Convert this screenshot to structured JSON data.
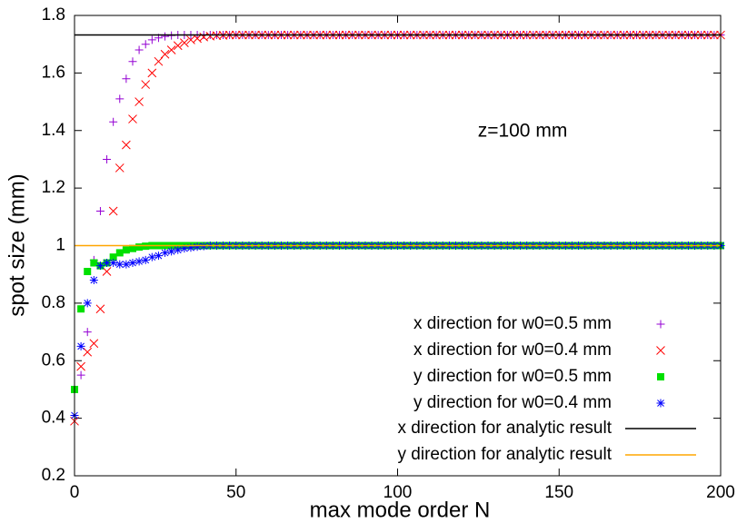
{
  "chart_data": {
    "type": "scatter",
    "xlabel": "max mode order N",
    "ylabel": "spot size (mm)",
    "annotation": "z=100 mm",
    "xlim": [
      0,
      200
    ],
    "xticks": [
      0,
      50,
      100,
      150,
      200
    ],
    "ylim": [
      0.2,
      1.8
    ],
    "yticks": [
      0.2,
      0.4,
      0.6,
      0.8,
      1,
      1.2,
      1.4,
      1.6,
      1.8
    ],
    "legend": "lower right",
    "x": [
      0,
      2,
      4,
      6,
      8,
      10,
      12,
      14,
      16,
      18,
      20,
      22,
      24,
      26,
      28,
      30,
      32,
      34,
      36,
      38,
      40,
      42,
      44,
      46,
      48,
      50,
      52,
      54,
      56,
      58,
      60,
      62,
      64,
      66,
      68,
      70,
      72,
      74,
      76,
      78,
      80,
      82,
      84,
      86,
      88,
      90,
      92,
      94,
      96,
      98,
      100,
      102,
      104,
      106,
      108,
      110,
      112,
      114,
      116,
      118,
      120,
      122,
      124,
      126,
      128,
      130,
      132,
      134,
      136,
      138,
      140,
      142,
      144,
      146,
      148,
      150,
      152,
      154,
      156,
      158,
      160,
      162,
      164,
      166,
      168,
      170,
      172,
      174,
      176,
      178,
      180,
      182,
      184,
      186,
      188,
      190,
      192,
      194,
      196,
      198,
      200
    ],
    "series": [
      {
        "name": "x direction for w0=0.5 mm",
        "color": "#9400d3",
        "marker": "plus",
        "values": [
          0.41,
          0.55,
          0.7,
          0.95,
          1.12,
          1.3,
          1.43,
          1.51,
          1.58,
          1.64,
          1.68,
          1.7,
          1.715,
          1.722,
          1.727,
          1.73,
          1.732,
          1.732,
          1.732,
          1.732,
          1.732,
          1.732,
          1.732,
          1.732,
          1.732,
          1.732,
          1.732,
          1.732,
          1.732,
          1.732,
          1.732,
          1.732,
          1.732,
          1.732,
          1.732,
          1.732,
          1.732,
          1.732,
          1.732,
          1.732,
          1.732,
          1.732,
          1.732,
          1.732,
          1.732,
          1.732,
          1.732,
          1.732,
          1.732,
          1.732,
          1.732,
          1.732,
          1.732,
          1.732,
          1.732,
          1.732,
          1.732,
          1.732,
          1.732,
          1.732,
          1.732,
          1.732,
          1.732,
          1.732,
          1.732,
          1.732,
          1.732,
          1.732,
          1.732,
          1.732,
          1.732,
          1.732,
          1.732,
          1.732,
          1.732,
          1.732,
          1.732,
          1.732,
          1.732,
          1.732,
          1.732,
          1.732,
          1.732,
          1.732,
          1.732,
          1.732,
          1.732,
          1.732,
          1.732,
          1.732,
          1.732,
          1.732,
          1.732,
          1.732,
          1.732,
          1.732,
          1.732,
          1.732,
          1.732,
          1.732,
          1.732
        ]
      },
      {
        "name": "x direction for w0=0.4 mm",
        "color": "#ff0000",
        "marker": "cross",
        "values": [
          0.39,
          0.58,
          0.63,
          0.66,
          0.78,
          0.91,
          1.12,
          1.27,
          1.35,
          1.44,
          1.5,
          1.56,
          1.6,
          1.64,
          1.665,
          1.68,
          1.695,
          1.705,
          1.715,
          1.72,
          1.725,
          1.728,
          1.73,
          1.731,
          1.732,
          1.732,
          1.732,
          1.732,
          1.732,
          1.732,
          1.732,
          1.732,
          1.732,
          1.732,
          1.732,
          1.732,
          1.732,
          1.732,
          1.732,
          1.732,
          1.732,
          1.732,
          1.732,
          1.732,
          1.732,
          1.732,
          1.732,
          1.732,
          1.732,
          1.732,
          1.732,
          1.732,
          1.732,
          1.732,
          1.732,
          1.732,
          1.732,
          1.732,
          1.732,
          1.732,
          1.732,
          1.732,
          1.732,
          1.732,
          1.732,
          1.732,
          1.732,
          1.732,
          1.732,
          1.732,
          1.732,
          1.732,
          1.732,
          1.732,
          1.732,
          1.732,
          1.732,
          1.732,
          1.732,
          1.732,
          1.732,
          1.732,
          1.732,
          1.732,
          1.732,
          1.732,
          1.732,
          1.732,
          1.732,
          1.732,
          1.732,
          1.732,
          1.732,
          1.732,
          1.732,
          1.732,
          1.732,
          1.732,
          1.732,
          1.732,
          1.732
        ]
      },
      {
        "name": "y direction for w0=0.5 mm",
        "color": "#00e000",
        "marker": "square",
        "values": [
          0.5,
          0.78,
          0.91,
          0.94,
          0.93,
          0.94,
          0.96,
          0.975,
          0.985,
          0.99,
          0.995,
          0.998,
          1,
          1,
          1,
          1,
          1,
          1,
          1,
          1,
          1,
          1,
          1,
          1,
          1,
          1,
          1,
          1,
          1,
          1,
          1,
          1,
          1,
          1,
          1,
          1,
          1,
          1,
          1,
          1,
          1,
          1,
          1,
          1,
          1,
          1,
          1,
          1,
          1,
          1,
          1,
          1,
          1,
          1,
          1,
          1,
          1,
          1,
          1,
          1,
          1,
          1,
          1,
          1,
          1,
          1,
          1,
          1,
          1,
          1,
          1,
          1,
          1,
          1,
          1,
          1,
          1,
          1,
          1,
          1,
          1,
          1,
          1,
          1,
          1,
          1,
          1,
          1,
          1,
          1,
          1,
          1,
          1,
          1,
          1,
          1,
          1,
          1,
          1,
          1,
          1
        ]
      },
      {
        "name": "y direction for w0=0.4 mm",
        "color": "#0000ff",
        "marker": "star",
        "values": [
          0.41,
          0.65,
          0.8,
          0.88,
          0.93,
          0.94,
          0.94,
          0.935,
          0.935,
          0.94,
          0.945,
          0.95,
          0.96,
          0.965,
          0.975,
          0.98,
          0.985,
          0.99,
          0.993,
          0.996,
          0.998,
          1,
          1,
          1,
          1,
          1,
          1,
          1,
          1,
          1,
          1,
          1,
          1,
          1,
          1,
          1,
          1,
          1,
          1,
          1,
          1,
          1,
          1,
          1,
          1,
          1,
          1,
          1,
          1,
          1,
          1,
          1,
          1,
          1,
          1,
          1,
          1,
          1,
          1,
          1,
          1,
          1,
          1,
          1,
          1,
          1,
          1,
          1,
          1,
          1,
          1,
          1,
          1,
          1,
          1,
          1,
          1,
          1,
          1,
          1,
          1,
          1,
          1,
          1,
          1,
          1,
          1,
          1,
          1,
          1,
          1,
          1,
          1,
          1,
          1,
          1,
          1,
          1,
          1,
          1,
          1
        ]
      },
      {
        "name": "x direction for analytic result",
        "color": "#000000",
        "marker": "line",
        "x": [
          0,
          200
        ],
        "values": [
          1.732,
          1.732
        ]
      },
      {
        "name": "y direction for analytic result",
        "color": "#ffa500",
        "marker": "line",
        "x": [
          0,
          200
        ],
        "values": [
          1,
          1
        ]
      }
    ]
  }
}
